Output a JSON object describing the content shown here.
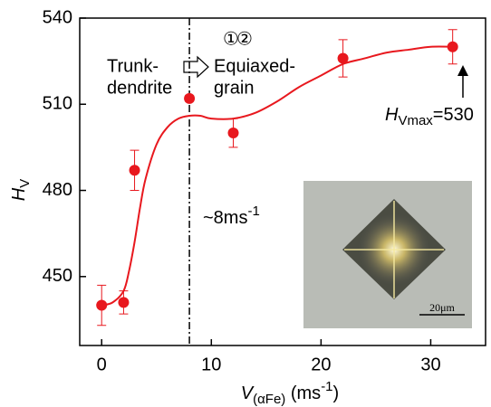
{
  "chart_data": {
    "type": "scatter",
    "x_label": {
      "main": "V",
      "sub": "(αFe)",
      "unit": " (ms",
      "sup": "-1",
      "end": ")"
    },
    "y_label": {
      "main": "H",
      "sub": "V"
    },
    "xlim": [
      -2,
      35
    ],
    "ylim": [
      426,
      540
    ],
    "xticks": [
      0,
      10,
      20,
      30
    ],
    "yticks": [
      450,
      480,
      510,
      540
    ],
    "series": [
      {
        "color": "#e8181e",
        "x": [
          0,
          2,
          3,
          8,
          12,
          22,
          32
        ],
        "values": [
          440,
          441,
          487,
          512,
          500,
          526,
          530
        ],
        "errors": [
          7,
          4,
          7,
          1,
          5,
          6.5,
          6
        ]
      },
      {
        "color": "#e8181e",
        "x": [
          0,
          1,
          2,
          2.5,
          3,
          3.5,
          4,
          5,
          6,
          7,
          8,
          9,
          10,
          12,
          14,
          16,
          18,
          20,
          22,
          24,
          26,
          28,
          30,
          32
        ],
        "values": [
          440,
          441,
          445,
          452,
          462,
          474,
          484,
          496,
          502,
          505,
          506,
          506,
          505,
          505,
          507,
          511,
          516,
          520,
          524,
          526,
          528,
          529,
          530,
          530
        ]
      }
    ],
    "vline_x": 8,
    "annotations": {
      "circle1": "①",
      "circle2": "②",
      "trunk1": "Trunk-",
      "trunk2": "dendrite",
      "equi1": "Equiaxed-",
      "equi2": "grain",
      "speed": {
        "text": "~8ms",
        "sup": "-1"
      },
      "hmax": {
        "main": "H",
        "sub": "Vmax",
        "rest": "=530"
      },
      "scale_bar": "20μm"
    }
  }
}
